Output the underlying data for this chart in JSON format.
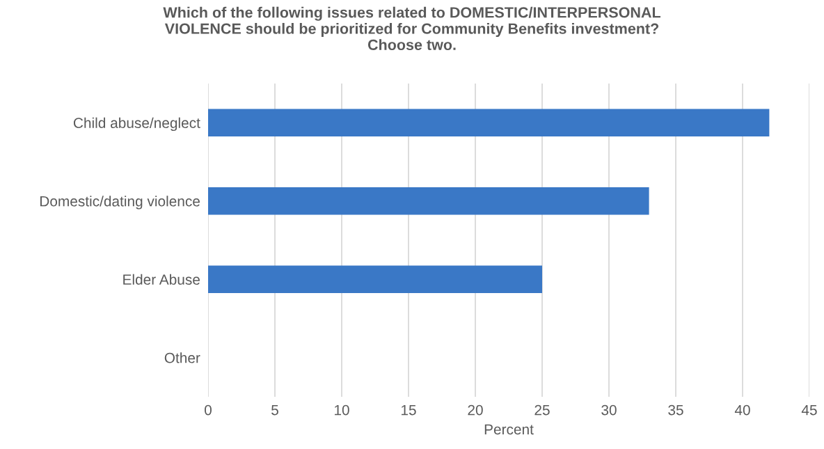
{
  "chart_data": {
    "type": "bar",
    "orientation": "horizontal",
    "title": "Which of the following issues related to DOMESTIC/INTERPERSONAL\nVIOLENCE should be prioritized for Community Benefits investment?\nChoose two.",
    "categories": [
      "Child abuse/neglect",
      "Domestic/dating violence",
      "Elder Abuse",
      "Other"
    ],
    "values": [
      42,
      33,
      25,
      0
    ],
    "color": "#3a78c6",
    "xlabel": "Percent",
    "xlim": [
      0,
      45
    ],
    "xticks": [
      0,
      5,
      10,
      15,
      20,
      25,
      30,
      35,
      40,
      45
    ],
    "grid": "x",
    "legend": false
  }
}
